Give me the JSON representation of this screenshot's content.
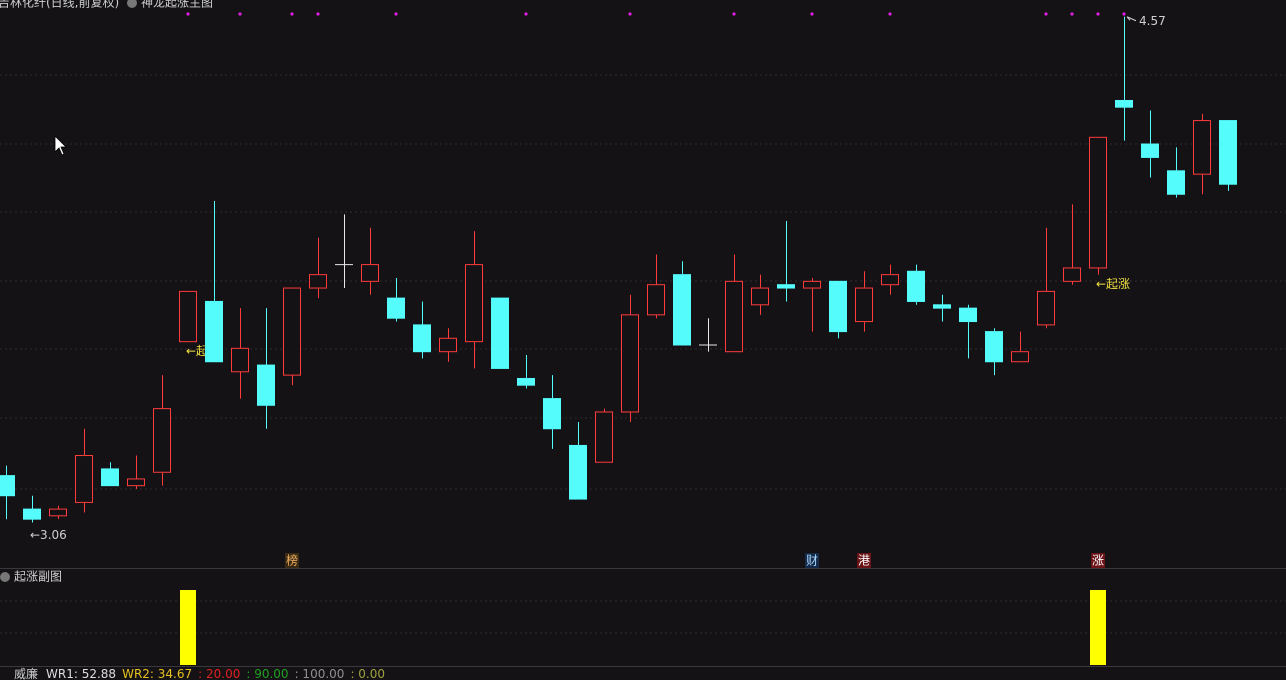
{
  "chart_data": [
    {
      "type": "candlestick",
      "title": "吉林化纤(日线,前复权)",
      "subtitle": "神龙起涨主图",
      "categories": [
        null,
        null,
        null,
        null,
        null,
        null,
        null,
        null,
        null,
        null,
        null,
        null,
        null,
        null,
        null,
        null,
        null,
        null,
        null,
        null,
        null,
        null,
        null,
        null,
        null,
        null,
        null,
        null,
        null,
        null,
        null,
        null,
        null,
        null,
        null,
        null,
        null,
        null,
        null,
        null,
        null,
        null,
        null,
        null,
        null,
        null,
        null,
        null
      ],
      "open": [
        3.2,
        3.1,
        3.08,
        3.12,
        3.22,
        3.17,
        3.21,
        3.6,
        3.72,
        3.51,
        3.53,
        3.5,
        3.76,
        3.83,
        3.78,
        3.73,
        3.65,
        3.57,
        3.6,
        3.73,
        3.49,
        3.43,
        3.29,
        3.24,
        3.39,
        3.68,
        3.8,
        3.59,
        3.57,
        3.71,
        3.77,
        3.76,
        3.78,
        3.66,
        3.77,
        3.81,
        3.71,
        3.7,
        3.63,
        3.54,
        3.65,
        3.78,
        3.82,
        4.32,
        4.19,
        4.11,
        4.1,
        4.26
      ],
      "high": [
        3.23,
        3.14,
        3.11,
        3.34,
        3.24,
        3.26,
        3.5,
        3.75,
        4.02,
        3.7,
        3.7,
        3.76,
        3.91,
        3.98,
        3.94,
        3.79,
        3.72,
        3.64,
        3.93,
        3.73,
        3.56,
        3.5,
        3.36,
        3.4,
        3.74,
        3.86,
        3.84,
        3.67,
        3.86,
        3.8,
        3.96,
        3.79,
        3.78,
        3.81,
        3.83,
        3.83,
        3.74,
        3.71,
        3.64,
        3.63,
        3.94,
        4.01,
        4.21,
        4.57,
        4.29,
        4.18,
        4.28,
        4.26
      ],
      "low": [
        3.07,
        3.06,
        3.07,
        3.09,
        3.17,
        3.16,
        3.17,
        3.6,
        3.54,
        3.43,
        3.34,
        3.47,
        3.73,
        3.76,
        3.74,
        3.66,
        3.55,
        3.54,
        3.52,
        3.52,
        3.46,
        3.28,
        3.13,
        3.24,
        3.36,
        3.67,
        3.59,
        3.57,
        3.57,
        3.68,
        3.72,
        3.63,
        3.61,
        3.63,
        3.74,
        3.71,
        3.66,
        3.55,
        3.5,
        3.54,
        3.64,
        3.77,
        3.8,
        4.2,
        4.09,
        4.03,
        4.04,
        4.05
      ],
      "close": [
        3.14,
        3.07,
        3.1,
        3.26,
        3.17,
        3.19,
        3.4,
        3.75,
        3.54,
        3.58,
        3.41,
        3.76,
        3.8,
        3.83,
        3.83,
        3.67,
        3.57,
        3.61,
        3.83,
        3.52,
        3.47,
        3.34,
        3.13,
        3.39,
        3.68,
        3.77,
        3.59,
        3.59,
        3.78,
        3.76,
        3.76,
        3.78,
        3.63,
        3.76,
        3.8,
        3.72,
        3.7,
        3.66,
        3.54,
        3.57,
        3.75,
        3.82,
        4.21,
        4.3,
        4.15,
        4.04,
        4.26,
        4.07
      ],
      "ylim": [
        2.96,
        4.62
      ],
      "up_color": "#ff3b3b",
      "down_color": "#54fcfc",
      "flat_color": "#e8e8e8",
      "low_mark": {
        "value": 3.06,
        "label": "←3.06"
      },
      "high_mark": {
        "value": 4.57,
        "label": "4.57"
      },
      "arrow_labels": [
        null,
        null,
        null,
        null,
        null,
        null,
        null,
        "←起涨",
        null,
        null,
        null,
        null,
        null,
        null,
        null,
        null,
        null,
        null,
        null,
        null,
        null,
        null,
        null,
        null,
        null,
        null,
        null,
        null,
        null,
        null,
        null,
        null,
        null,
        null,
        null,
        null,
        null,
        null,
        null,
        null,
        null,
        null,
        "←起涨",
        null,
        null,
        null,
        null,
        null
      ],
      "arrow_label_color": "#f0e040",
      "tags": [
        null,
        null,
        null,
        null,
        null,
        null,
        null,
        null,
        null,
        null,
        null,
        {
          "text": "榜",
          "color": "#f0b060",
          "bg": "#3a2a14"
        },
        null,
        null,
        null,
        null,
        null,
        null,
        null,
        null,
        null,
        null,
        null,
        null,
        null,
        null,
        null,
        null,
        null,
        null,
        null,
        {
          "text": "财",
          "color": "#a8d8ff",
          "bg": "#142a48"
        },
        null,
        {
          "text": "港",
          "color": "#ffffff",
          "bg": "#6a1418"
        },
        null,
        null,
        null,
        null,
        null,
        null,
        null,
        null,
        {
          "text": "涨",
          "color": "#ffffff",
          "bg": "#6a1418"
        },
        null,
        null,
        null,
        null,
        null
      ],
      "signal_dots": [
        null,
        null,
        null,
        null,
        null,
        null,
        null,
        true,
        null,
        true,
        null,
        true,
        true,
        null,
        null,
        true,
        null,
        null,
        null,
        null,
        true,
        null,
        null,
        null,
        true,
        null,
        null,
        null,
        true,
        null,
        null,
        true,
        null,
        null,
        true,
        null,
        null,
        null,
        null,
        null,
        true,
        true,
        true,
        true,
        null,
        null,
        null,
        null
      ],
      "dot_color": "#e020e0"
    },
    {
      "type": "bar",
      "title": "起涨副图",
      "values": [
        null,
        null,
        null,
        null,
        null,
        null,
        null,
        1,
        null,
        null,
        null,
        null,
        null,
        null,
        null,
        null,
        null,
        null,
        null,
        null,
        null,
        null,
        null,
        null,
        null,
        null,
        null,
        null,
        null,
        null,
        null,
        null,
        null,
        null,
        null,
        null,
        null,
        null,
        null,
        null,
        null,
        null,
        1,
        null,
        null,
        null,
        null,
        null
      ],
      "ylim": [
        0,
        1
      ],
      "color": "#ffff00"
    }
  ],
  "indicator_bar": {
    "name": "威廉",
    "items": [
      {
        "text": "WR1: 52.88",
        "color": "#dddddd"
      },
      {
        "text": "WR2: 34.67",
        "color": "#e8c020"
      },
      {
        "text": ": 20.00",
        "color": "#e02020"
      },
      {
        "text": ": 90.00",
        "color": "#20a020"
      },
      {
        "text": ": 100.00",
        "color": "#909090"
      },
      {
        "text": ": 0.00",
        "color": "#a0a040"
      }
    ]
  }
}
